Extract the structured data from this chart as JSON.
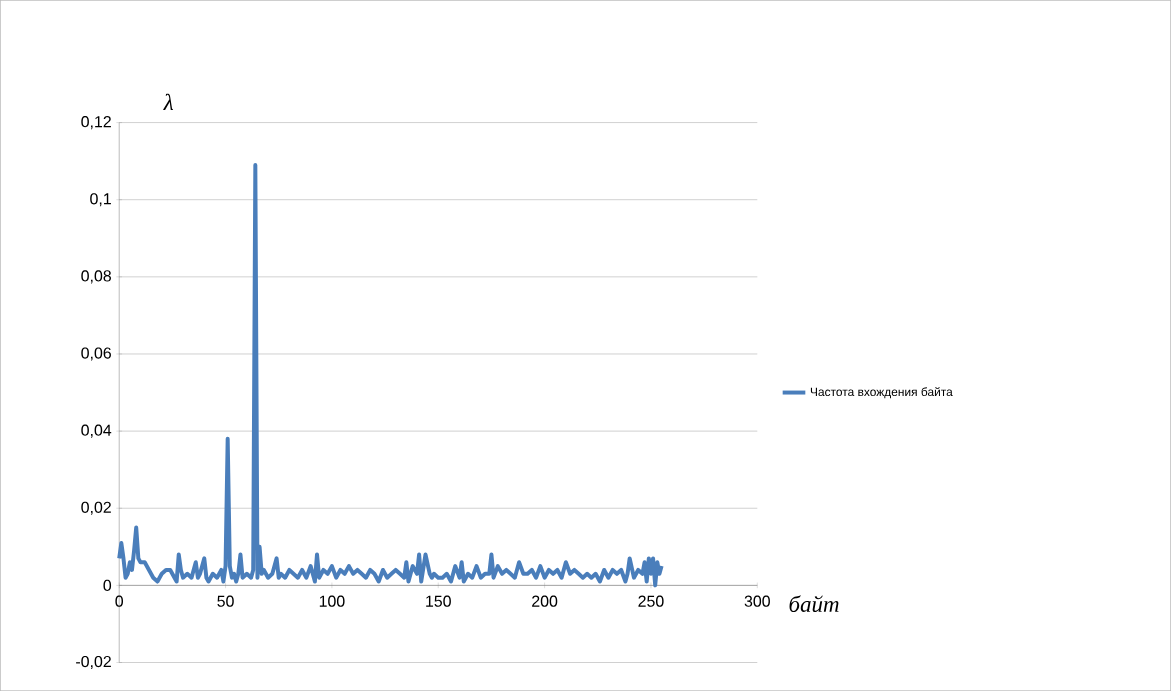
{
  "chart_data": {
    "type": "line",
    "ylabel": "λ",
    "xlabel": "байт",
    "x": [
      0,
      1,
      2,
      3,
      4,
      5,
      6,
      7,
      8,
      9,
      10,
      12,
      14,
      16,
      18,
      20,
      22,
      24,
      26,
      27,
      28,
      29,
      30,
      32,
      34,
      36,
      37,
      38,
      40,
      41,
      42,
      44,
      46,
      48,
      49,
      50,
      51,
      52,
      53,
      54,
      55,
      56,
      57,
      58,
      60,
      62,
      63,
      64,
      65,
      66,
      67,
      68,
      70,
      72,
      74,
      75,
      76,
      78,
      80,
      82,
      84,
      86,
      88,
      90,
      92,
      93,
      94,
      96,
      98,
      100,
      102,
      104,
      106,
      108,
      110,
      112,
      114,
      116,
      118,
      120,
      122,
      124,
      126,
      128,
      130,
      132,
      134,
      135,
      136,
      138,
      140,
      141,
      142,
      144,
      146,
      147,
      148,
      150,
      152,
      154,
      156,
      158,
      160,
      161,
      162,
      164,
      166,
      168,
      170,
      172,
      174,
      175,
      176,
      178,
      180,
      182,
      184,
      186,
      188,
      190,
      192,
      194,
      196,
      198,
      200,
      202,
      204,
      206,
      208,
      210,
      212,
      214,
      216,
      218,
      220,
      222,
      224,
      226,
      228,
      230,
      232,
      234,
      236,
      238,
      239,
      240,
      242,
      244,
      246,
      247,
      248,
      249,
      250,
      251,
      252,
      253,
      254,
      255
    ],
    "series": [
      {
        "name": "Частота вхождения байта",
        "color": "#4a7ebb",
        "values": [
          0.007,
          0.011,
          0.007,
          0.002,
          0.003,
          0.006,
          0.004,
          0.009,
          0.015,
          0.007,
          0.006,
          0.006,
          0.004,
          0.002,
          0.001,
          0.003,
          0.004,
          0.004,
          0.002,
          0.001,
          0.008,
          0.004,
          0.002,
          0.003,
          0.002,
          0.006,
          0.002,
          0.003,
          0.007,
          0.002,
          0.001,
          0.003,
          0.002,
          0.004,
          0.001,
          0.005,
          0.038,
          0.005,
          0.002,
          0.003,
          0.001,
          0.003,
          0.008,
          0.002,
          0.003,
          0.002,
          0.004,
          0.109,
          0.002,
          0.01,
          0.003,
          0.004,
          0.002,
          0.003,
          0.007,
          0.002,
          0.003,
          0.002,
          0.004,
          0.003,
          0.002,
          0.004,
          0.002,
          0.005,
          0.001,
          0.008,
          0.002,
          0.004,
          0.003,
          0.005,
          0.002,
          0.004,
          0.003,
          0.005,
          0.003,
          0.004,
          0.003,
          0.002,
          0.004,
          0.003,
          0.001,
          0.004,
          0.002,
          0.003,
          0.004,
          0.003,
          0.002,
          0.006,
          0.001,
          0.005,
          0.003,
          0.008,
          0.001,
          0.008,
          0.003,
          0.002,
          0.003,
          0.002,
          0.002,
          0.003,
          0.001,
          0.005,
          0.002,
          0.006,
          0.001,
          0.003,
          0.002,
          0.005,
          0.002,
          0.003,
          0.003,
          0.008,
          0.002,
          0.005,
          0.003,
          0.004,
          0.003,
          0.002,
          0.006,
          0.003,
          0.003,
          0.004,
          0.002,
          0.005,
          0.002,
          0.004,
          0.003,
          0.004,
          0.002,
          0.006,
          0.003,
          0.004,
          0.003,
          0.002,
          0.003,
          0.002,
          0.003,
          0.001,
          0.004,
          0.002,
          0.004,
          0.003,
          0.004,
          0.001,
          0.003,
          0.007,
          0.002,
          0.004,
          0.003,
          0.006,
          0.001,
          0.007,
          0.003,
          0.007,
          0.0,
          0.006,
          0.003,
          0.005
        ]
      }
    ],
    "xlim": [
      0,
      300
    ],
    "ylim": [
      -0.02,
      0.12
    ],
    "xticks": [
      0,
      50,
      100,
      150,
      200,
      250,
      300
    ],
    "yticks": [
      {
        "value": -0.02,
        "label": "-0,02"
      },
      0,
      {
        "value": 0.02,
        "label": "0,02"
      },
      {
        "value": 0.04,
        "label": "0,04"
      },
      {
        "value": 0.06,
        "label": "0,06"
      },
      {
        "value": 0.08,
        "label": "0,08"
      },
      {
        "value": 0.1,
        "label": "0,1"
      },
      {
        "value": 0.12,
        "label": "0,12"
      }
    ],
    "grid": "y",
    "legend": "right",
    "marker": "none",
    "line_style": "solid"
  }
}
